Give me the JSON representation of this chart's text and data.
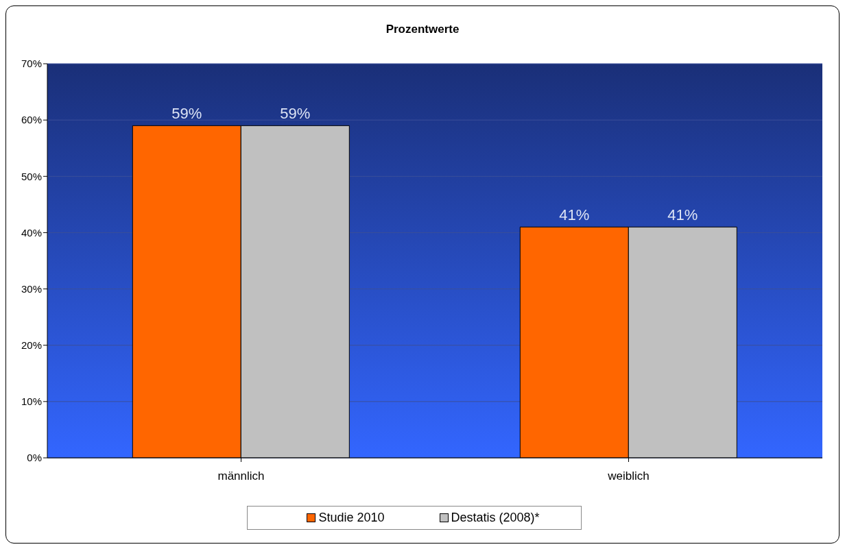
{
  "chart_data": {
    "type": "bar",
    "title": "Prozentwerte",
    "categories": [
      "männlich",
      "weiblich"
    ],
    "series": [
      {
        "name": "Studie 2010",
        "color": "#ff6600",
        "values": [
          59,
          41
        ],
        "value_labels": [
          "59%",
          "41%"
        ]
      },
      {
        "name": "Destatis (2008)*",
        "color": "#c0c0c0",
        "values": [
          59,
          41
        ],
        "value_labels": [
          "59%",
          "41%"
        ]
      }
    ],
    "ylim": [
      0,
      70
    ],
    "yticks": [
      {
        "value": 0,
        "label": "0%"
      },
      {
        "value": 10,
        "label": "10%"
      },
      {
        "value": 20,
        "label": "20%"
      },
      {
        "value": 30,
        "label": "30%"
      },
      {
        "value": 40,
        "label": "40%"
      },
      {
        "value": 50,
        "label": "50%"
      },
      {
        "value": 60,
        "label": "60%"
      },
      {
        "value": 70,
        "label": "70%"
      }
    ],
    "grid": "y",
    "legend": "bottom"
  }
}
